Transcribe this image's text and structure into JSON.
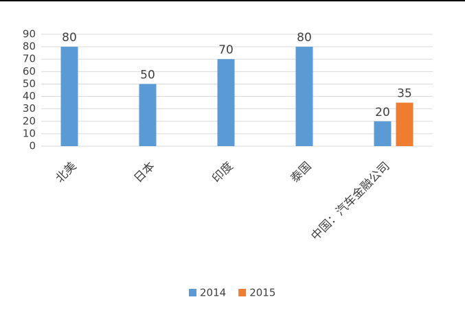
{
  "chart_data": {
    "type": "bar",
    "categories": [
      "北美",
      "日本",
      "印度",
      "泰国",
      "中国：汽车金融公司"
    ],
    "series": [
      {
        "name": "2014",
        "color": "#5b9bd5",
        "values": [
          80,
          50,
          70,
          80,
          20
        ]
      },
      {
        "name": "2015",
        "color": "#ed7d31",
        "values": [
          null,
          null,
          null,
          null,
          35
        ]
      }
    ],
    "ylim": [
      0,
      90
    ],
    "yticks": [
      0,
      10,
      20,
      30,
      40,
      50,
      60,
      70,
      80,
      90
    ],
    "grid": true,
    "legend": "bottom"
  }
}
